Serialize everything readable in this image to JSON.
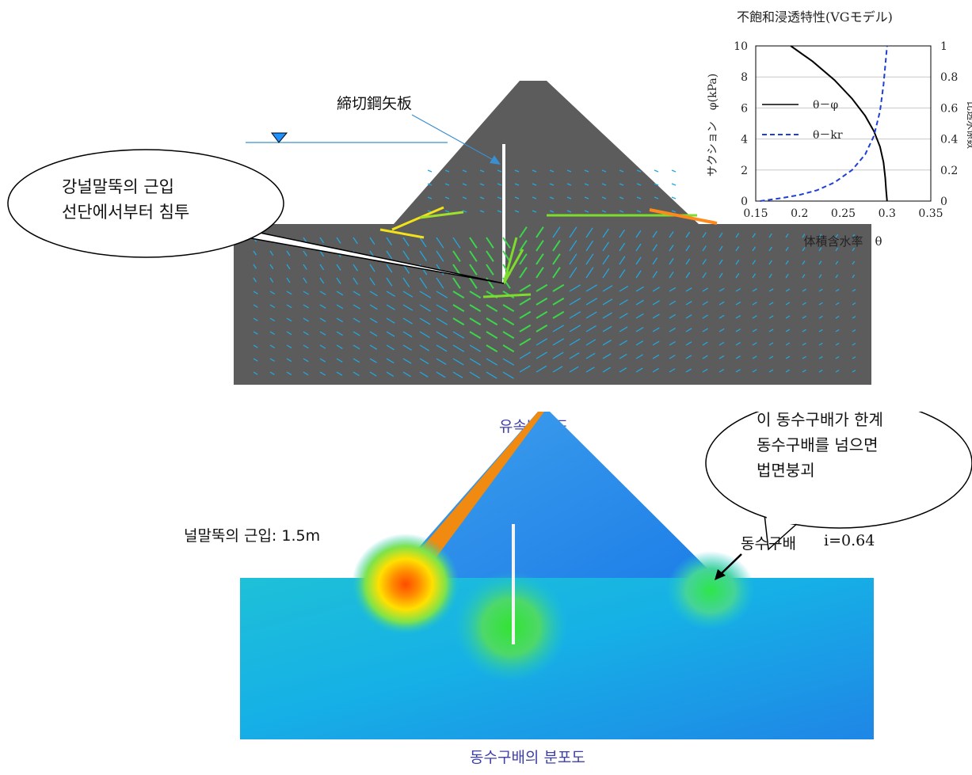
{
  "top_panel": {
    "sheet_pile_label": "締切鋼矢板",
    "bubble_text_line1": "강널말뚝의 근입",
    "bubble_text_line2": "선단에서부터 침투",
    "caption": "유속벡터도"
  },
  "bottom_panel": {
    "embedment_label": "널말뚝의 근입: 1.5m",
    "gradient_label": "동수구배",
    "gradient_value": "i=0.64",
    "bubble_line1": "이 동수구배가 한계",
    "bubble_line2": "동수구배를 넘으면",
    "bubble_line3": "법면붕괴",
    "caption": "동수구배의 분포도"
  },
  "chart_data": {
    "type": "line",
    "title": "不飽和浸透特性(VGモデル)",
    "xlabel": "体積含水率　θ",
    "ylabel": "サクション　φ(kPa)",
    "y2label": "比透水係数",
    "xlim": [
      0.15,
      0.35
    ],
    "ylim": [
      0,
      10
    ],
    "y2lim": [
      0,
      1
    ],
    "xticks": [
      "0.15",
      "0.2",
      "0.25",
      "0.3",
      "0.35"
    ],
    "yticks": [
      "0",
      "2",
      "4",
      "6",
      "8",
      "10"
    ],
    "y2ticks": [
      "0",
      "0.2",
      "0.4",
      "0.6",
      "0.8",
      "1"
    ],
    "grid": true,
    "legend_position": "left",
    "series": [
      {
        "name": "θ－φ",
        "axis": "left",
        "color": "#000000",
        "style": "solid",
        "x": [
          0.19,
          0.215,
          0.24,
          0.26,
          0.275,
          0.285,
          0.292,
          0.296,
          0.298,
          0.299,
          0.3
        ],
        "y": [
          10,
          9,
          7.8,
          6.6,
          5.5,
          4.5,
          3.5,
          2.5,
          1.5,
          0.7,
          0
        ]
      },
      {
        "name": "θ－kr",
        "axis": "right",
        "color": "#1f3fd6",
        "style": "dashed",
        "x": [
          0.155,
          0.18,
          0.2,
          0.22,
          0.24,
          0.26,
          0.275,
          0.285,
          0.292,
          0.296,
          0.3
        ],
        "y": [
          0.0,
          0.02,
          0.04,
          0.07,
          0.12,
          0.2,
          0.3,
          0.42,
          0.58,
          0.75,
          1.0
        ]
      }
    ]
  },
  "colors": {
    "dam_gray": "#5c5c5c",
    "water_marker": "#1e90ff",
    "caption_blue": "#3f3fa8"
  }
}
